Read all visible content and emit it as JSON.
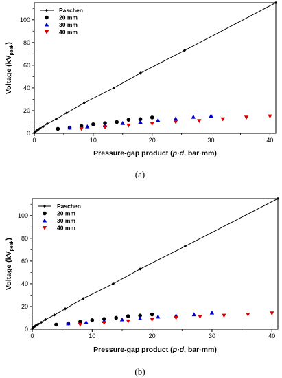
{
  "chart_data": [
    {
      "type": "scatter",
      "panel_label": "(a)",
      "xlabel_main": "Pressure-gap product (",
      "xlabel_italic": "p·d",
      "xlabel_end": ", bar·mm)",
      "ylabel_main": "Voltage (kV",
      "ylabel_sub": "peak",
      "ylabel_end": ")",
      "xlim": [
        0,
        41
      ],
      "ylim": [
        0,
        115
      ],
      "xticks": [
        "0",
        "10",
        "20",
        "30",
        "40"
      ],
      "yticks": [
        "0",
        "20",
        "40",
        "60",
        "80",
        "100"
      ],
      "xtick_values": [
        0,
        10,
        20,
        30,
        40
      ],
      "ytick_values": [
        0,
        20,
        40,
        60,
        80,
        100
      ],
      "legend_position": "top-left",
      "series": [
        {
          "name": "Paschen",
          "marker": "diamond-line",
          "color": "#000000",
          "x": [
            0,
            0.1,
            0.3,
            0.5,
            0.7,
            1.0,
            1.5,
            2.2,
            3.7,
            5.5,
            8.5,
            13.5,
            18,
            25.5,
            41
          ],
          "y": [
            0.3,
            1,
            2,
            2.8,
            3.5,
            4.5,
            6,
            8.5,
            12.5,
            18,
            27,
            40,
            53,
            73,
            115
          ]
        },
        {
          "name": "20 mm",
          "marker": "circle",
          "color": "#000000",
          "x": [
            4,
            6,
            8,
            10,
            12,
            14,
            16,
            18,
            20
          ],
          "y": [
            4,
            5,
            6.5,
            8,
            9,
            10,
            12,
            12.5,
            14
          ]
        },
        {
          "name": "30 mm",
          "marker": "triangle-up",
          "color": "#0000cc",
          "x": [
            6,
            9,
            12,
            15,
            18,
            21,
            24,
            27,
            30
          ],
          "y": [
            5,
            6,
            7,
            9,
            10,
            11.5,
            13,
            14.5,
            15.5
          ]
        },
        {
          "name": "40 mm",
          "marker": "triangle-down",
          "color": "#dd0000",
          "x": [
            8,
            12,
            16,
            20,
            24,
            28,
            32,
            36,
            40
          ],
          "y": [
            4,
            5.5,
            7,
            8.5,
            10,
            11,
            12.5,
            14,
            15
          ]
        }
      ]
    },
    {
      "type": "scatter",
      "panel_label": "(b)",
      "xlabel_main": "Pressure-gap product (",
      "xlabel_italic": "p·d",
      "xlabel_end": ", bar·mm)",
      "ylabel_main": "Voltage (kV",
      "ylabel_sub": "peak",
      "ylabel_end": ")",
      "xlim": [
        0,
        41
      ],
      "ylim": [
        0,
        115
      ],
      "xticks": [
        "0",
        "10",
        "20",
        "30",
        "40"
      ],
      "yticks": [
        "0",
        "20",
        "40",
        "60",
        "80",
        "100"
      ],
      "xtick_values": [
        0,
        10,
        20,
        30,
        40
      ],
      "ytick_values": [
        0,
        20,
        40,
        60,
        80,
        100
      ],
      "legend_position": "top-left",
      "series": [
        {
          "name": "Paschen",
          "marker": "diamond-line",
          "color": "#000000",
          "x": [
            0,
            0.1,
            0.3,
            0.5,
            0.7,
            1.0,
            1.5,
            2.2,
            3.7,
            5.5,
            8.5,
            13.5,
            18,
            25.5,
            41
          ],
          "y": [
            0.3,
            1,
            2,
            2.8,
            3.5,
            4.5,
            6,
            8.5,
            12.5,
            18,
            27,
            40,
            53,
            73,
            115
          ]
        },
        {
          "name": "20 mm",
          "marker": "circle",
          "color": "#000000",
          "x": [
            4,
            6,
            8,
            10,
            12,
            14,
            16,
            18,
            20
          ],
          "y": [
            4,
            5,
            6.5,
            8,
            9,
            10,
            11.5,
            12,
            13
          ]
        },
        {
          "name": "30 mm",
          "marker": "triangle-up",
          "color": "#0000cc",
          "x": [
            6,
            9,
            12,
            15,
            18,
            21,
            24,
            27,
            30
          ],
          "y": [
            5,
            6,
            7,
            8.5,
            9.5,
            11,
            12,
            13,
            14.5
          ]
        },
        {
          "name": "40 mm",
          "marker": "triangle-down",
          "color": "#dd0000",
          "x": [
            8,
            12,
            16,
            20,
            24,
            28,
            32,
            36,
            40
          ],
          "y": [
            4,
            5.5,
            7,
            8.5,
            10,
            11,
            12,
            13,
            14
          ]
        }
      ]
    }
  ]
}
